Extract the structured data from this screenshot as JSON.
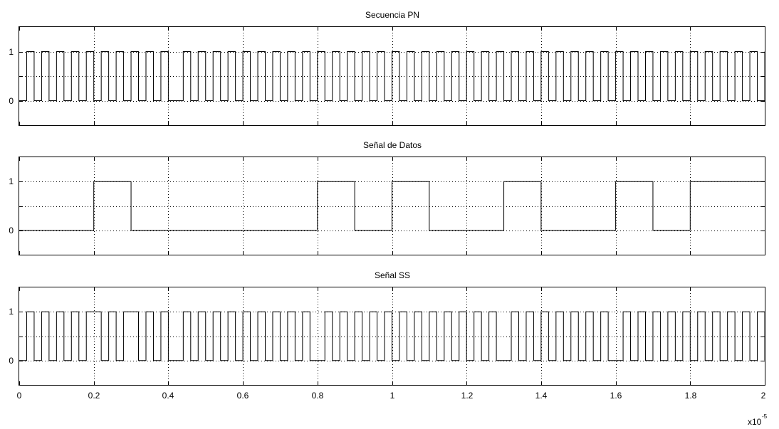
{
  "chart_data": [
    {
      "type": "line",
      "title": "Secuencia PN",
      "xlim": [
        0,
        2
      ],
      "ylim": [
        -0.5,
        1.5
      ],
      "yticks": [
        0,
        1
      ],
      "ytick_labels": [
        "0",
        "1"
      ],
      "xticks": [
        0,
        0.2,
        0.4,
        0.6,
        0.8,
        1,
        1.2,
        1.4,
        1.6,
        1.8,
        2
      ],
      "grid": true,
      "step": "post",
      "x": [
        0,
        0.02,
        0.04,
        0.06,
        0.08,
        0.1,
        0.12,
        0.14,
        0.16,
        0.18,
        0.2,
        0.22,
        0.24,
        0.26,
        0.28,
        0.3,
        0.32,
        0.34,
        0.36,
        0.38,
        0.4,
        0.42,
        0.44,
        0.46,
        0.48,
        0.5,
        0.52,
        0.54,
        0.56,
        0.58,
        0.6,
        0.62,
        0.64,
        0.66,
        0.68,
        0.7,
        0.72,
        0.74,
        0.76,
        0.78,
        0.8,
        0.82,
        0.84,
        0.86,
        0.88,
        0.9,
        0.92,
        0.94,
        0.96,
        0.98,
        1,
        1.02,
        1.04,
        1.06,
        1.08,
        1.1,
        1.12,
        1.14,
        1.16,
        1.18,
        1.2,
        1.22,
        1.24,
        1.26,
        1.28,
        1.3,
        1.32,
        1.34,
        1.36,
        1.38,
        1.4,
        1.42,
        1.44,
        1.46,
        1.48,
        1.5,
        1.52,
        1.54,
        1.56,
        1.58,
        1.6,
        1.62,
        1.64,
        1.66,
        1.68,
        1.7,
        1.72,
        1.74,
        1.76,
        1.78,
        1.8,
        1.82,
        1.84,
        1.86,
        1.88,
        1.9,
        1.92,
        1.94,
        1.96,
        1.98,
        2
      ],
      "values": [
        0,
        1,
        0,
        1,
        0,
        1,
        0,
        1,
        0,
        1,
        0,
        1,
        0,
        1,
        0,
        1,
        0,
        1,
        0,
        1,
        0,
        0,
        1,
        0,
        1,
        0,
        1,
        0,
        1,
        0,
        1,
        0,
        1,
        0,
        1,
        0,
        1,
        0,
        1,
        0,
        1,
        0,
        1,
        0,
        1,
        0,
        1,
        0,
        1,
        0,
        1,
        0,
        1,
        0,
        1,
        0,
        1,
        0,
        1,
        0,
        1,
        0,
        1,
        0,
        1,
        0,
        1,
        0,
        1,
        0,
        1,
        0,
        1,
        0,
        1,
        0,
        1,
        0,
        1,
        0,
        1,
        0,
        1,
        0,
        1,
        0,
        1,
        0,
        1,
        0,
        1,
        0,
        1,
        0,
        1,
        0,
        1,
        0,
        1,
        0,
        1
      ]
    },
    {
      "type": "line",
      "title": "Señal de Datos",
      "xlim": [
        0,
        2
      ],
      "ylim": [
        -0.5,
        1.5
      ],
      "yticks": [
        0,
        1
      ],
      "ytick_labels": [
        "0",
        "1"
      ],
      "xticks": [
        0,
        0.2,
        0.4,
        0.6,
        0.8,
        1,
        1.2,
        1.4,
        1.6,
        1.8,
        2
      ],
      "grid": true,
      "step": "post",
      "x": [
        0,
        0.2,
        0.3,
        0.8,
        0.9,
        1,
        1.1,
        1.3,
        1.4,
        1.6,
        1.7,
        1.8,
        2
      ],
      "values": [
        0,
        1,
        0,
        1,
        0,
        1,
        0,
        1,
        0,
        1,
        0,
        1,
        1
      ]
    },
    {
      "type": "line",
      "title": "Señal SS",
      "xlim": [
        0,
        2
      ],
      "ylim": [
        -0.5,
        1.5
      ],
      "yticks": [
        0,
        1
      ],
      "ytick_labels": [
        "0",
        "1"
      ],
      "xticks": [
        0,
        0.2,
        0.4,
        0.6,
        0.8,
        1,
        1.2,
        1.4,
        1.6,
        1.8,
        2
      ],
      "xtick_labels": [
        "0",
        "0.2",
        "0.4",
        "0.6",
        "0.8",
        "1",
        "1.2",
        "1.4",
        "1.6",
        "1.8",
        "2"
      ],
      "x_multiplier_base": "x10",
      "x_multiplier_exp": "-5",
      "grid": true,
      "step": "post",
      "x": [
        0,
        0.02,
        0.04,
        0.06,
        0.08,
        0.1,
        0.12,
        0.14,
        0.16,
        0.18,
        0.2,
        0.22,
        0.24,
        0.26,
        0.28,
        0.3,
        0.32,
        0.34,
        0.36,
        0.38,
        0.4,
        0.42,
        0.44,
        0.46,
        0.48,
        0.5,
        0.52,
        0.54,
        0.56,
        0.58,
        0.6,
        0.62,
        0.64,
        0.66,
        0.68,
        0.7,
        0.72,
        0.74,
        0.76,
        0.78,
        0.8,
        0.82,
        0.84,
        0.86,
        0.88,
        0.9,
        0.92,
        0.94,
        0.96,
        0.98,
        1,
        1.02,
        1.04,
        1.06,
        1.08,
        1.1,
        1.12,
        1.14,
        1.16,
        1.18,
        1.2,
        1.22,
        1.24,
        1.26,
        1.28,
        1.3,
        1.32,
        1.34,
        1.36,
        1.38,
        1.4,
        1.42,
        1.44,
        1.46,
        1.48,
        1.5,
        1.52,
        1.54,
        1.56,
        1.58,
        1.6,
        1.62,
        1.64,
        1.66,
        1.68,
        1.7,
        1.72,
        1.74,
        1.76,
        1.78,
        1.8,
        1.82,
        1.84,
        1.86,
        1.88,
        1.9,
        1.92,
        1.94,
        1.96,
        1.98,
        2
      ],
      "values": [
        0,
        1,
        0,
        1,
        0,
        1,
        0,
        1,
        0,
        1,
        1,
        0,
        1,
        0,
        1,
        1,
        0,
        1,
        0,
        1,
        0,
        0,
        1,
        0,
        1,
        0,
        1,
        0,
        1,
        0,
        1,
        0,
        1,
        0,
        1,
        0,
        1,
        0,
        1,
        0,
        0,
        1,
        0,
        1,
        0,
        1,
        0,
        1,
        0,
        1,
        0,
        1,
        0,
        1,
        0,
        1,
        0,
        1,
        0,
        1,
        0,
        1,
        0,
        1,
        0,
        0,
        1,
        0,
        1,
        0,
        1,
        0,
        1,
        0,
        1,
        0,
        1,
        0,
        1,
        0,
        0,
        1,
        0,
        1,
        0,
        1,
        0,
        1,
        0,
        1,
        0,
        1,
        0,
        1,
        0,
        1,
        0,
        1,
        0,
        1,
        0
      ]
    }
  ]
}
